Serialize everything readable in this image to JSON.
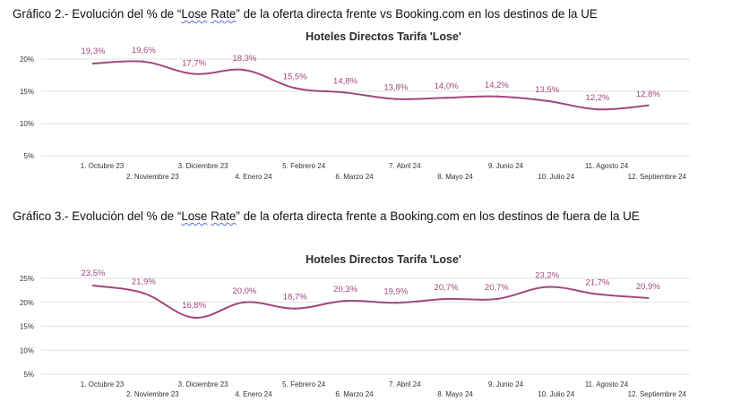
{
  "captions": [
    {
      "before": "Gráfico 2.-  Evolución del  % de “",
      "wavy1": "Lose",
      "mid": " ",
      "wavy2": "Rate",
      "after": "” de la oferta directa frente vs Booking.com en los destinos de la UE"
    },
    {
      "before": "Gráfico 3.- Evolución del  % de “",
      "wavy1": "Lose",
      "mid": " ",
      "wavy2": "Rate",
      "after": "” de la oferta directa frente a Booking.com en los destinos de fuera de la UE"
    }
  ],
  "colors": {
    "series": "#a0487e",
    "grid": "#d9d9d9"
  },
  "chart_data": [
    {
      "type": "line",
      "title": "Hoteles Directos Tarifa 'Lose'",
      "categories": [
        "1. Octubre 23",
        "2. Noviembre 23",
        "3. Diciembre 23",
        "4. Enero 24",
        "5. Febrero 24",
        "6. Marzo 24",
        "7. Abril 24",
        "8. Mayo 24",
        "9. Junio 24",
        "10. Julio 24",
        "11. Agosto 24",
        "12. Septiembre 24"
      ],
      "values": [
        19.3,
        19.6,
        17.7,
        18.3,
        15.5,
        14.8,
        13.8,
        14.0,
        14.2,
        13.5,
        12.2,
        12.8
      ],
      "data_labels": [
        "19,3%",
        "19,6%",
        "17,7%",
        "18,3%",
        "15,5%",
        "14,8%",
        "13,8%",
        "14,0%",
        "14,2%",
        "13,5%",
        "12,2%",
        "12,8%"
      ],
      "yticks": [
        20,
        15,
        10,
        5
      ],
      "ytick_labels": [
        "20%",
        "15%",
        "10%",
        "5%"
      ],
      "ylim": [
        5,
        20
      ],
      "xlabel": "",
      "ylabel": "",
      "grid": true,
      "legend": "none"
    },
    {
      "type": "line",
      "title": "Hoteles Directos Tarifa 'Lose'",
      "categories": [
        "1. Octubre 23",
        "2. Noviembre 23",
        "3. Diciembre 23",
        "4. Enero 24",
        "5. Febrero 24",
        "6. Marzo 24",
        "7. Abril 24",
        "8. Mayo 24",
        "9. Junio 24",
        "10. Julio 24",
        "11. Agosto 24",
        "12. Septiembre 24"
      ],
      "values": [
        23.5,
        21.9,
        16.8,
        20.0,
        18.7,
        20.3,
        19.9,
        20.7,
        20.7,
        23.2,
        21.7,
        20.9
      ],
      "data_labels": [
        "23,5%",
        "21,9%",
        "16,8%",
        "20,0%",
        "18,7%",
        "20,3%",
        "19,9%",
        "20,7%",
        "20,7%",
        "23,2%",
        "21,7%",
        "20,9%"
      ],
      "yticks": [
        25,
        20,
        15,
        10,
        5
      ],
      "ytick_labels": [
        "25%",
        "20%",
        "15%",
        "10%",
        "5%"
      ],
      "ylim": [
        5,
        25
      ],
      "xlabel": "",
      "ylabel": "",
      "grid": true,
      "legend": "none"
    }
  ]
}
